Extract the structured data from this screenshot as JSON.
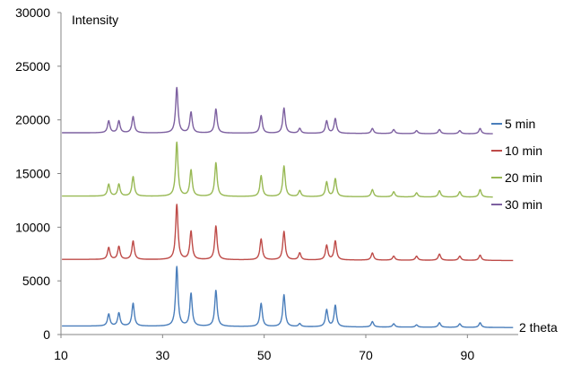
{
  "chart_data": {
    "type": "line",
    "title": "",
    "xlabel": "2 theta",
    "ylabel": "Intensity",
    "xlim": [
      10,
      100
    ],
    "ylim": [
      0,
      30000
    ],
    "x_ticks": [
      10,
      30,
      50,
      70,
      90
    ],
    "y_ticks": [
      0,
      5000,
      10000,
      15000,
      20000,
      25000,
      30000
    ],
    "grid": false,
    "legend_position": "right",
    "series": [
      {
        "name": "5 min",
        "color": "#4a7ebb",
        "baseline_start": 800,
        "baseline_end": 650,
        "baseline_x_end": 99,
        "peaks": [
          [
            19.4,
            1900
          ],
          [
            21.4,
            2000
          ],
          [
            24.2,
            2900
          ],
          [
            32.8,
            6300
          ],
          [
            35.6,
            3800
          ],
          [
            40.5,
            4100
          ],
          [
            49.4,
            2900
          ],
          [
            53.9,
            3700
          ],
          [
            57.0,
            1000
          ],
          [
            62.3,
            2300
          ],
          [
            64.0,
            2700
          ],
          [
            71.3,
            1200
          ],
          [
            75.5,
            1000
          ],
          [
            80.0,
            900
          ],
          [
            84.5,
            1100
          ],
          [
            88.5,
            1000
          ],
          [
            92.5,
            1100
          ]
        ]
      },
      {
        "name": "10 min",
        "color": "#be4b48",
        "baseline_start": 7000,
        "baseline_end": 6900,
        "baseline_x_end": 99,
        "peaks": [
          [
            19.4,
            8100
          ],
          [
            21.4,
            8200
          ],
          [
            24.2,
            8700
          ],
          [
            32.8,
            12100
          ],
          [
            35.6,
            9600
          ],
          [
            40.5,
            10100
          ],
          [
            49.4,
            8900
          ],
          [
            53.9,
            9600
          ],
          [
            57.0,
            7600
          ],
          [
            62.3,
            8300
          ],
          [
            64.0,
            8700
          ],
          [
            71.3,
            7600
          ],
          [
            75.5,
            7300
          ],
          [
            80.0,
            7300
          ],
          [
            84.5,
            7500
          ],
          [
            88.5,
            7300
          ],
          [
            92.5,
            7400
          ]
        ]
      },
      {
        "name": "20 min",
        "color": "#98b954",
        "baseline_start": 12900,
        "baseline_end": 12800,
        "baseline_x_end": 95,
        "peaks": [
          [
            19.4,
            14000
          ],
          [
            21.4,
            14000
          ],
          [
            24.2,
            14700
          ],
          [
            32.8,
            17900
          ],
          [
            35.6,
            15300
          ],
          [
            40.5,
            16000
          ],
          [
            49.4,
            14800
          ],
          [
            53.9,
            15700
          ],
          [
            57.0,
            13400
          ],
          [
            62.3,
            14200
          ],
          [
            64.0,
            14500
          ],
          [
            71.3,
            13500
          ],
          [
            75.5,
            13300
          ],
          [
            80.0,
            13200
          ],
          [
            84.5,
            13400
          ],
          [
            88.5,
            13300
          ],
          [
            92.5,
            13500
          ]
        ]
      },
      {
        "name": "30 min",
        "color": "#7d60a0",
        "baseline_start": 18800,
        "baseline_end": 18700,
        "baseline_x_end": 95,
        "peaks": [
          [
            19.4,
            19900
          ],
          [
            21.4,
            19900
          ],
          [
            24.2,
            20300
          ],
          [
            32.8,
            23000
          ],
          [
            35.6,
            20700
          ],
          [
            40.5,
            21000
          ],
          [
            49.4,
            20400
          ],
          [
            53.9,
            21100
          ],
          [
            57.0,
            19200
          ],
          [
            62.3,
            19900
          ],
          [
            64.0,
            20100
          ],
          [
            71.3,
            19200
          ],
          [
            75.5,
            19100
          ],
          [
            80.0,
            19000
          ],
          [
            84.5,
            19100
          ],
          [
            88.5,
            19000
          ],
          [
            92.5,
            19200
          ]
        ]
      }
    ]
  }
}
